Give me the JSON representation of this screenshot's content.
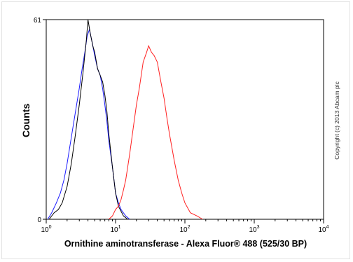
{
  "chart_data": {
    "type": "line",
    "xlabel": "Ornithine aminotransferase - Alexa Fluor® 488 (525/30 BP)",
    "ylabel": "Counts",
    "x_scale": "log",
    "xlim": [
      1,
      10000
    ],
    "ylim": [
      0,
      61
    ],
    "x_ticks": [
      {
        "value": 1,
        "base": "10",
        "exp": "0"
      },
      {
        "value": 10,
        "base": "10",
        "exp": "1"
      },
      {
        "value": 100,
        "base": "10",
        "exp": "2"
      },
      {
        "value": 1000,
        "base": "10",
        "exp": "3"
      },
      {
        "value": 10000,
        "base": "10",
        "exp": "4"
      }
    ],
    "y_ticks": [
      {
        "value": 0,
        "label": "0"
      },
      {
        "value": 61,
        "label": "61"
      }
    ],
    "series": [
      {
        "color": "#1a1aff",
        "x": [
          1.05,
          1.2,
          1.4,
          1.6,
          1.8,
          2.0,
          2.3,
          2.6,
          3.0,
          3.3,
          3.6,
          3.9,
          4.2,
          4.6,
          5.0,
          5.5,
          6.0,
          6.5,
          7.0,
          7.5,
          8.0,
          9.0,
          10,
          11,
          12,
          14,
          16
        ],
        "y": [
          0,
          2,
          5,
          8,
          12,
          17,
          25,
          32,
          40,
          46,
          51,
          56,
          58,
          54,
          50,
          46,
          44,
          40,
          35,
          30,
          24,
          16,
          8,
          5,
          3,
          1,
          0
        ]
      },
      {
        "color": "#000000",
        "x": [
          1.1,
          1.3,
          1.5,
          1.7,
          2.0,
          2.3,
          2.6,
          3.0,
          3.4,
          3.8,
          4.0,
          4.3,
          4.7,
          5.0,
          5.5,
          6.0,
          6.5,
          7.0,
          7.5,
          8.0,
          9.0,
          10,
          11,
          13,
          15
        ],
        "y": [
          0,
          2,
          3,
          5,
          10,
          17,
          25,
          35,
          45,
          55,
          61,
          57,
          53,
          51,
          46,
          44,
          42,
          38,
          33,
          26,
          16,
          8,
          4,
          1,
          0
        ]
      },
      {
        "color": "#ff2020",
        "x": [
          8,
          9,
          10,
          11,
          12,
          13,
          14,
          16,
          18,
          20,
          22,
          25,
          28,
          30,
          33,
          36,
          40,
          45,
          50,
          55,
          60,
          70,
          80,
          90,
          100,
          120,
          150,
          180
        ],
        "y": [
          0,
          1,
          3,
          4,
          6,
          9,
          12,
          20,
          28,
          35,
          40,
          48,
          51,
          53,
          51,
          50,
          48,
          42,
          37,
          31,
          26,
          18,
          12,
          8,
          5,
          2,
          1,
          0
        ]
      }
    ]
  },
  "copyright": "Copyright (c) 2013 Abcam plc"
}
